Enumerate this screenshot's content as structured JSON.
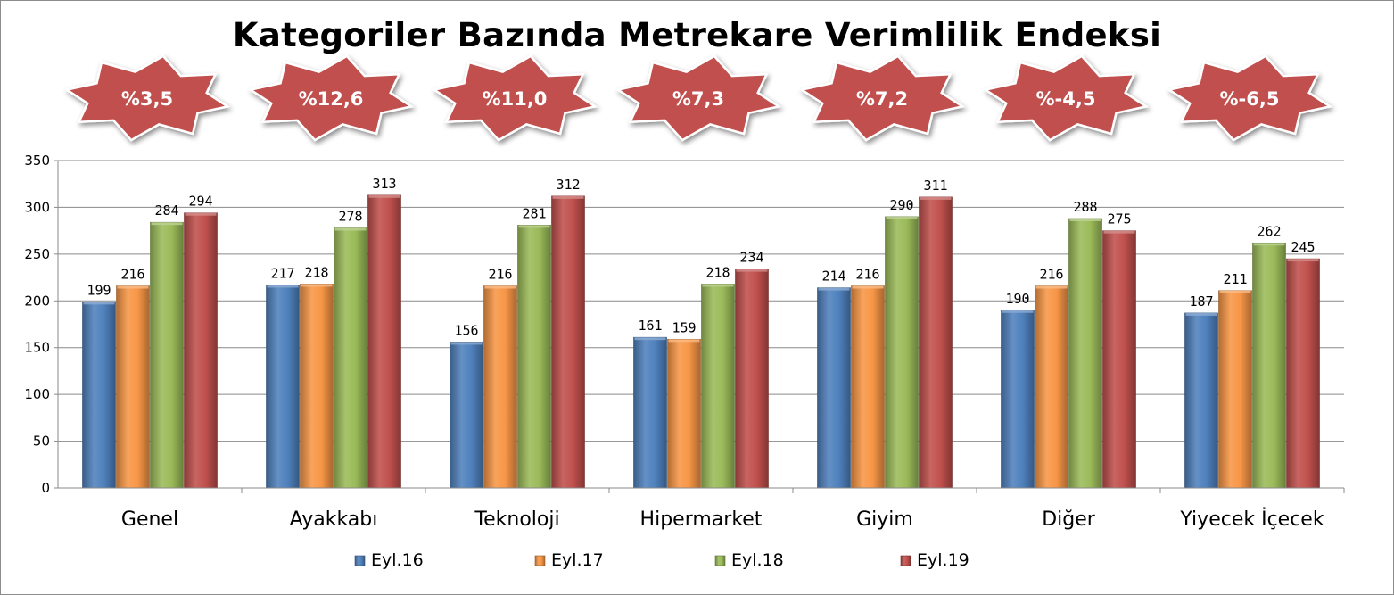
{
  "chart_data": {
    "type": "bar",
    "title": "Kategoriler Bazında Metrekare Verimlilik Endeksi",
    "categories": [
      "Genel",
      "Ayakkabı",
      "Teknoloji",
      "Hipermarket",
      "Giyim",
      "Diğer",
      "Yiyecek İçecek"
    ],
    "series": [
      {
        "name": "Eyl.16",
        "color": "#4f81bd",
        "values": [
          199,
          217,
          156,
          161,
          214,
          190,
          187
        ]
      },
      {
        "name": "Eyl.17",
        "color": "#f79646",
        "values": [
          216,
          218,
          216,
          159,
          216,
          216,
          211
        ]
      },
      {
        "name": "Eyl.18",
        "color": "#9bbb59",
        "values": [
          284,
          278,
          281,
          218,
          290,
          288,
          262
        ]
      },
      {
        "name": "Eyl.19",
        "color": "#c0504d",
        "values": [
          294,
          313,
          312,
          234,
          311,
          275,
          245
        ]
      }
    ],
    "growth_badges": [
      "%3,5",
      "%12,6",
      "%11,0",
      "%7,3",
      "%7,2",
      "%-4,5",
      "%-6,5"
    ],
    "badge_color": "#c0504d",
    "ylim": [
      0,
      350
    ],
    "yticks": [
      0,
      50,
      100,
      150,
      200,
      250,
      300,
      350
    ],
    "grid": true,
    "legend_position": "bottom",
    "data_labels": true
  }
}
